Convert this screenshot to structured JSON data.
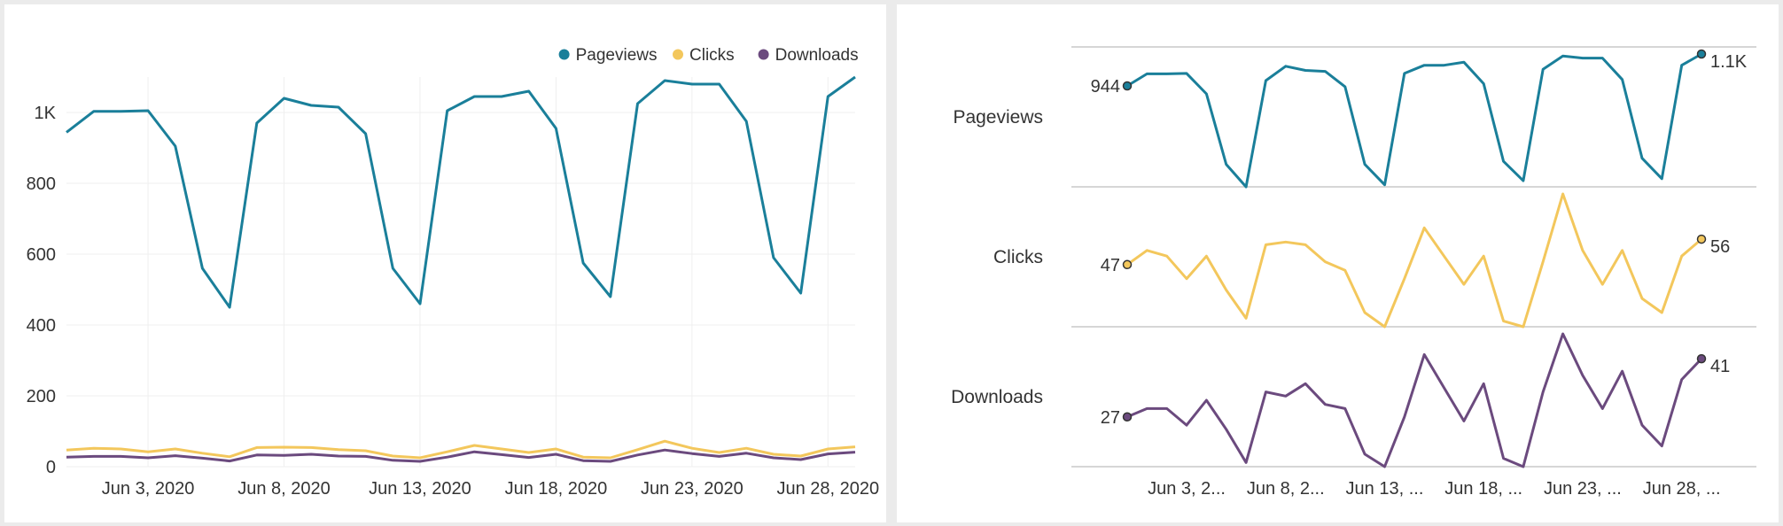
{
  "chart_data": [
    {
      "type": "line",
      "title": "",
      "xlabel": "",
      "ylabel": "",
      "x": [
        "May 31, 2020",
        "Jun 1, 2020",
        "Jun 2, 2020",
        "Jun 3, 2020",
        "Jun 4, 2020",
        "Jun 5, 2020",
        "Jun 6, 2020",
        "Jun 7, 2020",
        "Jun 8, 2020",
        "Jun 9, 2020",
        "Jun 10, 2020",
        "Jun 11, 2020",
        "Jun 12, 2020",
        "Jun 13, 2020",
        "Jun 14, 2020",
        "Jun 15, 2020",
        "Jun 16, 2020",
        "Jun 17, 2020",
        "Jun 18, 2020",
        "Jun 19, 2020",
        "Jun 20, 2020",
        "Jun 21, 2020",
        "Jun 22, 2020",
        "Jun 23, 2020",
        "Jun 24, 2020",
        "Jun 25, 2020",
        "Jun 26, 2020",
        "Jun 27, 2020",
        "Jun 28, 2020",
        "Jun 29, 2020"
      ],
      "x_tick_labels": [
        "Jun 3, 2020",
        "Jun 8, 2020",
        "Jun 13, 2020",
        "Jun 18, 2020",
        "Jun 23, 2020",
        "Jun 28, 2020"
      ],
      "y_tick_labels": [
        "0",
        "200",
        "400",
        "600",
        "800",
        "1K"
      ],
      "ylim": [
        0,
        1100
      ],
      "grid": true,
      "legend": "top-right",
      "series": [
        {
          "name": "Pageviews",
          "color": "#1a7f9a",
          "values": [
            944,
            1003,
            1003,
            1005,
            905,
            560,
            450,
            970,
            1040,
            1020,
            1015,
            940,
            560,
            460,
            1005,
            1045,
            1045,
            1060,
            955,
            575,
            480,
            1025,
            1090,
            1080,
            1080,
            975,
            590,
            490,
            1045,
            1100
          ]
        },
        {
          "name": "Clicks",
          "color": "#f3c75c",
          "values": [
            47,
            52,
            50,
            42,
            50,
            38,
            28,
            54,
            55,
            54,
            48,
            45,
            30,
            25,
            42,
            60,
            50,
            40,
            50,
            27,
            25,
            48,
            72,
            52,
            40,
            52,
            35,
            30,
            50,
            56
          ]
        },
        {
          "name": "Downloads",
          "color": "#6b4a7e",
          "values": [
            27,
            29,
            29,
            25,
            31,
            24,
            16,
            33,
            32,
            35,
            30,
            29,
            18,
            15,
            27,
            42,
            34,
            26,
            35,
            17,
            15,
            33,
            47,
            37,
            29,
            38,
            25,
            20,
            36,
            41
          ]
        }
      ]
    },
    {
      "type": "line",
      "title": "",
      "xlabel": "",
      "ylabel": "",
      "x_tick_labels": [
        "Jun 3, 2...",
        "Jun 8, 2...",
        "Jun 13, ...",
        "Jun 18, ...",
        "Jun 23, ...",
        "Jun 28, ..."
      ],
      "grid": true,
      "rows": [
        {
          "name": "Pageviews",
          "color": "#1a7f9a",
          "first_label": "944",
          "last_label": "1.1K",
          "ylim": [
            450,
            1100
          ],
          "values": [
            944,
            1003,
            1003,
            1005,
            905,
            560,
            450,
            970,
            1040,
            1020,
            1015,
            940,
            560,
            460,
            1005,
            1045,
            1045,
            1060,
            955,
            575,
            480,
            1025,
            1090,
            1080,
            1080,
            975,
            590,
            490,
            1045,
            1100
          ]
        },
        {
          "name": "Clicks",
          "color": "#f3c75c",
          "first_label": "47",
          "last_label": "56",
          "ylim": [
            25,
            72
          ],
          "values": [
            47,
            52,
            50,
            42,
            50,
            38,
            28,
            54,
            55,
            54,
            48,
            45,
            30,
            25,
            42,
            60,
            50,
            40,
            50,
            27,
            25,
            48,
            72,
            52,
            40,
            52,
            35,
            30,
            50,
            56
          ]
        },
        {
          "name": "Downloads",
          "color": "#6b4a7e",
          "first_label": "27",
          "last_label": "41",
          "ylim": [
            15,
            47
          ],
          "values": [
            27,
            29,
            29,
            25,
            31,
            24,
            16,
            33,
            32,
            35,
            30,
            29,
            18,
            15,
            27,
            42,
            34,
            26,
            35,
            17,
            15,
            33,
            47,
            37,
            29,
            38,
            25,
            20,
            36,
            41
          ]
        }
      ]
    }
  ]
}
